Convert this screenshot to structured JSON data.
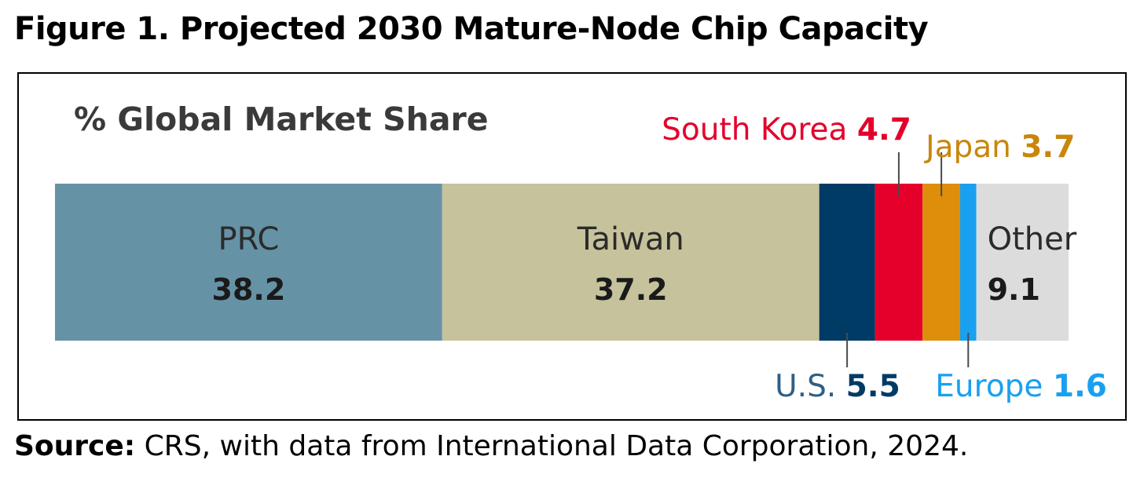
{
  "title": "Figure 1. Projected 2030 Mature-Node Chip Capacity",
  "source": {
    "label": "Source:",
    "text": " CRS, with data from International Data Corporation, 2024."
  },
  "chart_data": {
    "type": "bar",
    "orientation": "horizontal-stacked-100",
    "subtitle": "% Global Market Share",
    "categories": [
      "PRC",
      "Taiwan",
      "U.S.",
      "South Korea",
      "Japan",
      "Europe",
      "Other"
    ],
    "values": [
      38.2,
      37.2,
      5.5,
      4.7,
      3.7,
      1.6,
      9.1
    ],
    "value_labels": [
      "38.2",
      "37.2",
      "5.5",
      "4.7",
      "3.7",
      "1.6",
      "9.1"
    ],
    "colors": [
      "#6692a6",
      "#c6c29c",
      "#003b66",
      "#e4002b",
      "#df8e0b",
      "#1aa0f0",
      "#dcdcdc"
    ],
    "label_colors": {
      "name": [
        "#2b2b2b",
        "#2b2b2b",
        "#2f5f84",
        "#e4002b",
        "#c9860b",
        "#1aa0f0",
        "#2b2b2b"
      ],
      "value": [
        "#1a1a1a",
        "#1a1a1a",
        "#003b66",
        "#e4002b",
        "#c9860b",
        "#1aa0f0",
        "#1a1a1a"
      ]
    },
    "label_placement": [
      "inside",
      "inside",
      "below",
      "above",
      "above",
      "below",
      "inside"
    ],
    "total": 100,
    "grid": false,
    "legend": "none"
  }
}
